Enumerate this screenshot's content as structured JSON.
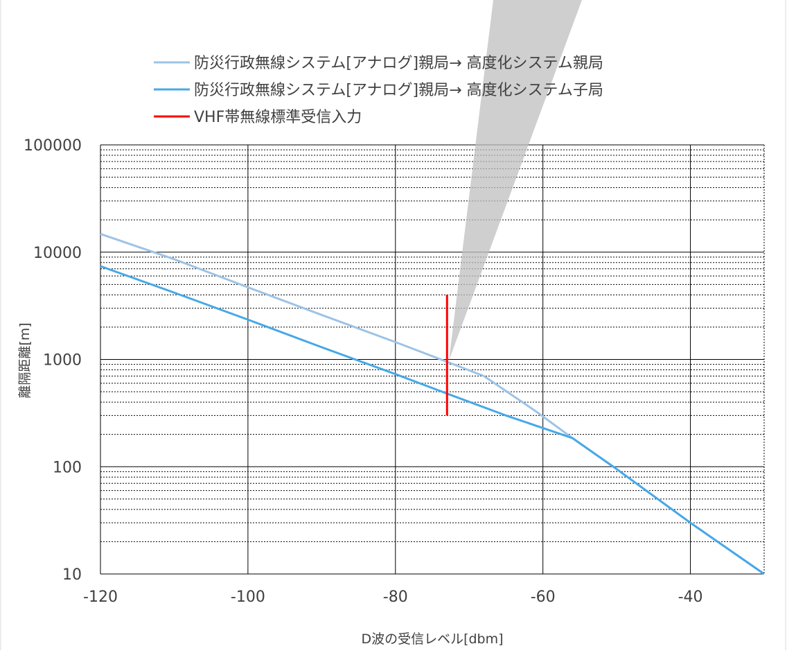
{
  "chart_data": {
    "type": "line",
    "title": "",
    "xlabel": "D波の受信レベル[dbm]",
    "ylabel": "離隔距離[m]",
    "x_scale": "linear",
    "y_scale": "log",
    "xlim": [
      -120,
      -30
    ],
    "ylim": [
      10,
      100000
    ],
    "x_ticks": [
      -120,
      -100,
      -80,
      -60,
      -40
    ],
    "x_tick_labels": [
      "-120",
      "-100",
      "-80",
      "-60",
      "-40"
    ],
    "y_ticks": [
      10,
      100,
      1000,
      10000,
      100000
    ],
    "y_tick_labels": [
      "10",
      "100",
      "1000",
      "10000",
      "100000"
    ],
    "grid": true,
    "minor_grid": true,
    "legend_position": "top",
    "series": [
      {
        "name": "防災行政無線システム[アナログ]親局→ 高度化システム親局",
        "color": "#9DC3E6",
        "points": [
          [
            -120,
            14800
          ],
          [
            -110,
            8600
          ],
          [
            -100,
            4700
          ],
          [
            -90,
            2600
          ],
          [
            -80,
            1450
          ],
          [
            -73,
            950
          ],
          [
            -68,
            700
          ],
          [
            -61,
            330
          ],
          [
            -56,
            185
          ],
          [
            -50,
            95
          ],
          [
            -40,
            30
          ],
          [
            -30,
            10
          ]
        ]
      },
      {
        "name": "防災行政無線システム[アナログ]親局→ 高度化システム子局",
        "color": "#45A8E8",
        "points": [
          [
            -120,
            7400
          ],
          [
            -110,
            4200
          ],
          [
            -100,
            2350
          ],
          [
            -90,
            1300
          ],
          [
            -80,
            730
          ],
          [
            -73,
            480
          ],
          [
            -65,
            300
          ],
          [
            -56,
            185
          ],
          [
            -50,
            95
          ],
          [
            -40,
            30
          ],
          [
            -30,
            10
          ]
        ]
      },
      {
        "name": "VHF帯無線標準受信入力",
        "color": "#FF0000",
        "points": [
          [
            -73,
            300
          ],
          [
            -73,
            4000
          ]
        ]
      }
    ]
  }
}
